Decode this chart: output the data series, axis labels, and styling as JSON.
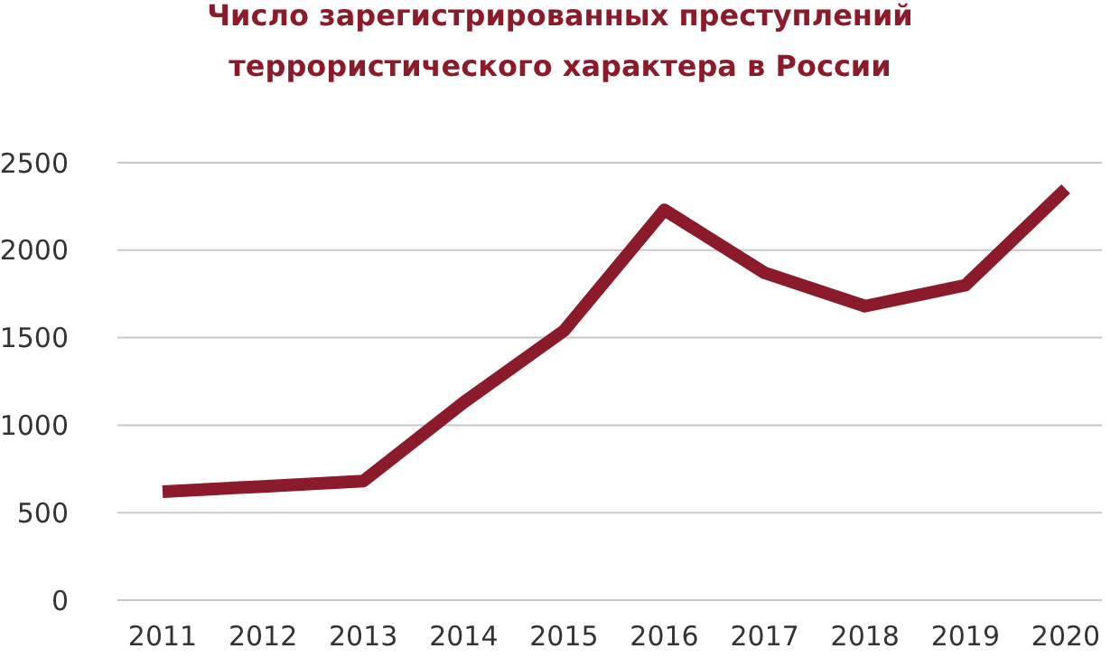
{
  "chart_data": {
    "type": "line",
    "title": "Число зарегистрированных преступлений террористического характера в России",
    "categories": [
      "2011",
      "2012",
      "2013",
      "2014",
      "2015",
      "2016",
      "2017",
      "2018",
      "2019",
      "2020"
    ],
    "series": [
      {
        "color": "#8b1a2b",
        "values": [
          620,
          650,
          680,
          1130,
          1540,
          2230,
          1870,
          1680,
          1800,
          2350
        ]
      }
    ],
    "ylim": [
      0,
      2500
    ],
    "yticks": [
      0,
      500,
      1000,
      1500,
      2000,
      2500
    ],
    "grid": "y",
    "marker": "none",
    "line_style": "solid"
  }
}
